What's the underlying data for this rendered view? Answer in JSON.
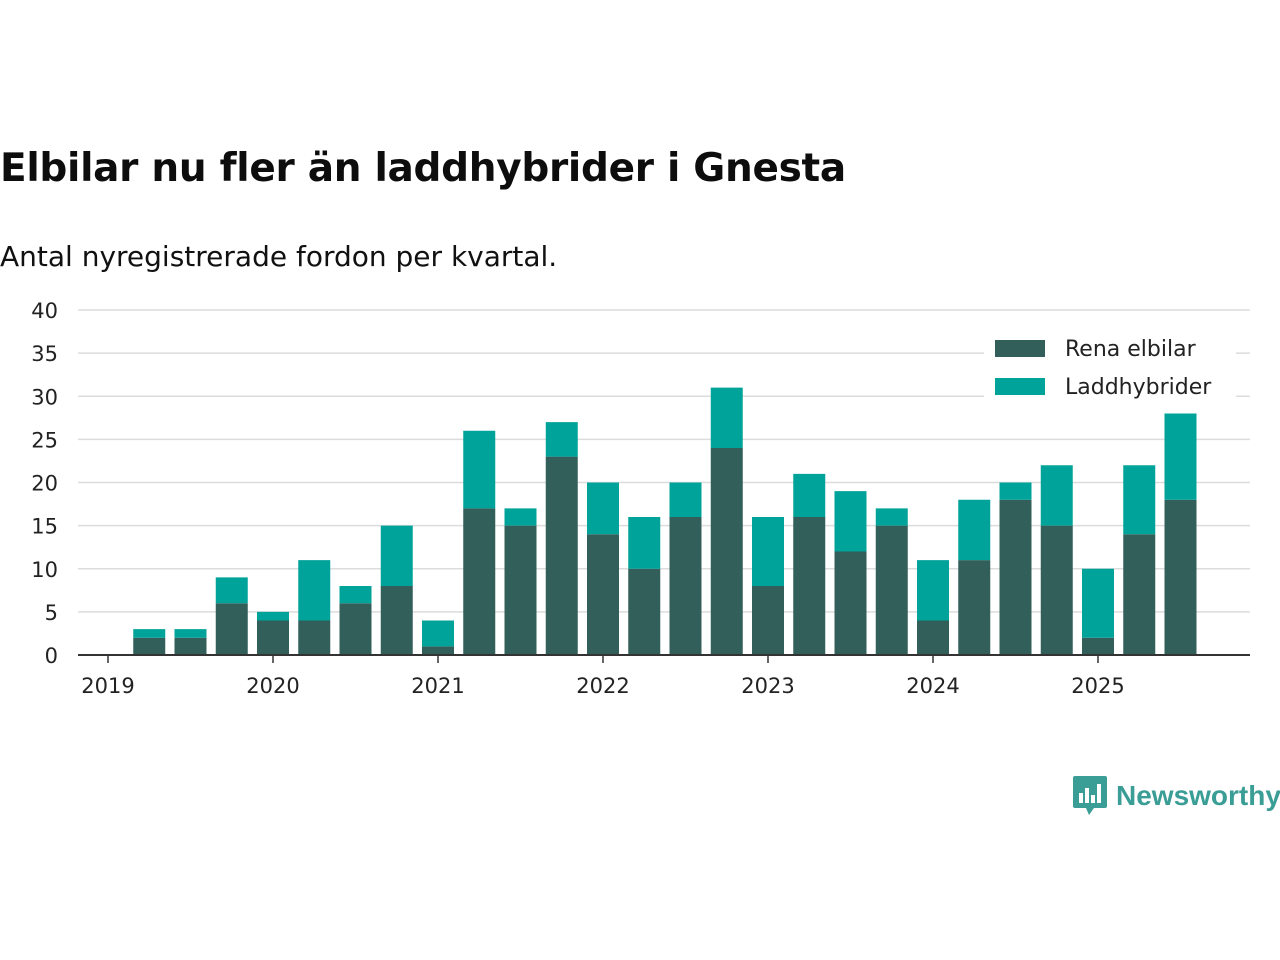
{
  "chart_data": {
    "type": "bar",
    "stacked": true,
    "title": "Elbilar nu fler än laddhybrider i Gnesta",
    "subtitle": "Antal nyregistrerade fordon per kvartal.",
    "ylim": [
      0,
      40
    ],
    "yticks": [
      0,
      5,
      10,
      15,
      20,
      25,
      30,
      35,
      40
    ],
    "x_tick_labels": [
      "2019",
      "2020",
      "2021",
      "2022",
      "2023",
      "2024",
      "2025"
    ],
    "categories": [
      "2019 Q2",
      "2019 Q3",
      "2019 Q4",
      "2020 Q1",
      "2020 Q2",
      "2020 Q3",
      "2020 Q4",
      "2021 Q1",
      "2021 Q2",
      "2021 Q3",
      "2021 Q4",
      "2022 Q1",
      "2022 Q2",
      "2022 Q3",
      "2022 Q4",
      "2023 Q1",
      "2023 Q2",
      "2023 Q3",
      "2023 Q4",
      "2024 Q1",
      "2024 Q2",
      "2024 Q3",
      "2024 Q4",
      "2025 Q1",
      "2025 Q2",
      "2025 Q3"
    ],
    "series": [
      {
        "name": "Rena elbilar",
        "color": "#335f5a",
        "values": [
          2,
          2,
          6,
          4,
          4,
          6,
          8,
          1,
          17,
          15,
          23,
          14,
          10,
          16,
          24,
          8,
          16,
          12,
          15,
          4,
          11,
          18,
          15,
          2,
          14,
          18
        ]
      },
      {
        "name": "Laddhybrider",
        "color": "#00a39a",
        "values": [
          1,
          1,
          3,
          1,
          7,
          2,
          7,
          3,
          9,
          2,
          4,
          6,
          6,
          4,
          7,
          8,
          5,
          7,
          2,
          7,
          7,
          2,
          7,
          8,
          8,
          10
        ]
      }
    ],
    "legend_position": "top-right",
    "grid": true
  },
  "brand": {
    "name": "Newsworthy",
    "icon": "newsworthy-logo-icon",
    "color": "#3a9d96"
  }
}
